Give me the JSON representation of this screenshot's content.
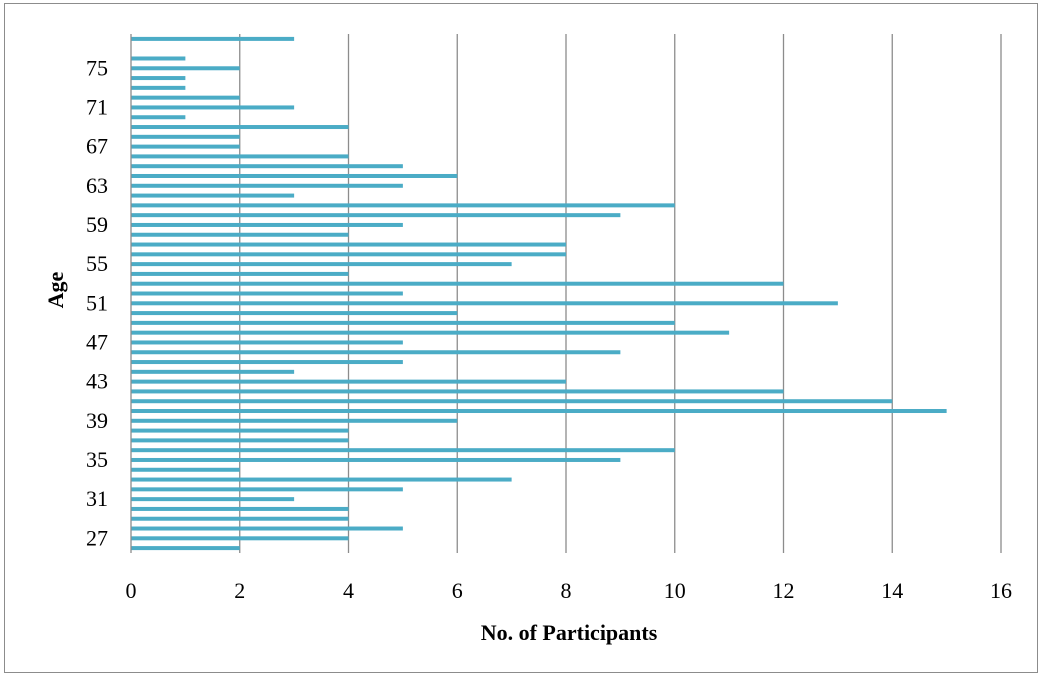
{
  "chart_data": {
    "type": "bar",
    "orientation": "horizontal",
    "xlabel": "No. of Participants",
    "ylabel": "Age",
    "xlim": [
      0,
      16
    ],
    "x_ticks": [
      0,
      2,
      4,
      6,
      8,
      10,
      12,
      14,
      16
    ],
    "y_tick_labels": [
      "27",
      "31",
      "35",
      "39",
      "43",
      "47",
      "51",
      "55",
      "59",
      "63",
      "67",
      "71",
      "75"
    ],
    "grid": "vertical",
    "legend": "none",
    "bar_color": "#4bacc6",
    "categories": [
      26,
      27,
      28,
      29,
      30,
      31,
      32,
      33,
      34,
      35,
      36,
      37,
      38,
      39,
      40,
      41,
      42,
      43,
      44,
      45,
      46,
      47,
      48,
      49,
      50,
      51,
      52,
      53,
      54,
      55,
      56,
      57,
      58,
      59,
      60,
      61,
      62,
      63,
      64,
      65,
      66,
      67,
      68,
      69,
      70,
      71,
      72,
      73,
      74,
      75,
      76,
      77,
      78
    ],
    "values": [
      2,
      4,
      5,
      4,
      4,
      3,
      5,
      7,
      2,
      9,
      10,
      4,
      4,
      6,
      15,
      14,
      12,
      8,
      3,
      5,
      9,
      5,
      11,
      10,
      6,
      13,
      5,
      12,
      4,
      7,
      8,
      8,
      4,
      5,
      9,
      10,
      3,
      5,
      6,
      5,
      4,
      2,
      2,
      4,
      1,
      3,
      2,
      1,
      1,
      2,
      1,
      0,
      3
    ]
  }
}
